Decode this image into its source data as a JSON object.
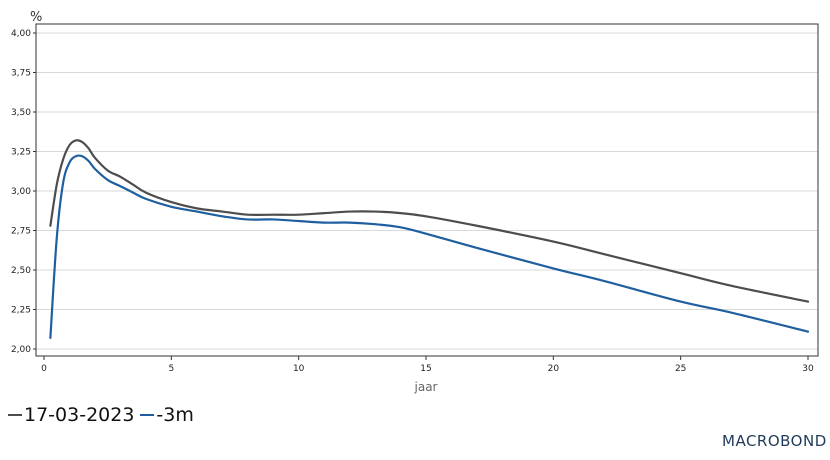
{
  "chart_data": {
    "type": "line",
    "unit_label": "%",
    "xlabel": "jaar",
    "xlim": [
      0,
      30
    ],
    "ylim": [
      2.0,
      4.0
    ],
    "x_ticks": [
      0,
      5,
      10,
      15,
      20,
      25,
      30
    ],
    "y_ticks": [
      "2,00",
      "2,25",
      "2,50",
      "2,75",
      "3,00",
      "3,25",
      "3,50",
      "3,75",
      "4,00"
    ],
    "y_tick_values": [
      2.0,
      2.25,
      2.5,
      2.75,
      3.0,
      3.25,
      3.5,
      3.75,
      4.0
    ],
    "grid": "horizontal",
    "legend_position": "bottom-left",
    "series": [
      {
        "name": "17-03-2023",
        "color": "#4d4d4d",
        "x": [
          0.25,
          0.5,
          0.75,
          1,
          1.25,
          1.5,
          1.75,
          2,
          2.5,
          3,
          3.5,
          4,
          5,
          6,
          7,
          8,
          9,
          10,
          11,
          12,
          13,
          14,
          15,
          17,
          20,
          22,
          25,
          27,
          30
        ],
        "values": [
          2.78,
          3.04,
          3.2,
          3.29,
          3.32,
          3.31,
          3.27,
          3.21,
          3.13,
          3.09,
          3.04,
          2.99,
          2.93,
          2.89,
          2.87,
          2.85,
          2.85,
          2.85,
          2.86,
          2.87,
          2.87,
          2.86,
          2.84,
          2.78,
          2.68,
          2.6,
          2.48,
          2.4,
          2.3
        ]
      },
      {
        "name": "-3m",
        "color": "#1f5f9f",
        "x": [
          0.25,
          0.5,
          0.75,
          1,
          1.25,
          1.5,
          1.75,
          2,
          2.5,
          3,
          3.5,
          4,
          5,
          6,
          7,
          8,
          9,
          10,
          11,
          12,
          13,
          14,
          15,
          17,
          20,
          22,
          25,
          27,
          30
        ],
        "values": [
          2.07,
          2.7,
          3.05,
          3.18,
          3.22,
          3.22,
          3.19,
          3.14,
          3.07,
          3.03,
          2.99,
          2.95,
          2.9,
          2.87,
          2.84,
          2.82,
          2.82,
          2.81,
          2.8,
          2.8,
          2.79,
          2.77,
          2.73,
          2.64,
          2.51,
          2.43,
          2.3,
          2.23,
          2.11
        ]
      }
    ]
  },
  "branding": {
    "logo_text": "MACROBOND"
  }
}
